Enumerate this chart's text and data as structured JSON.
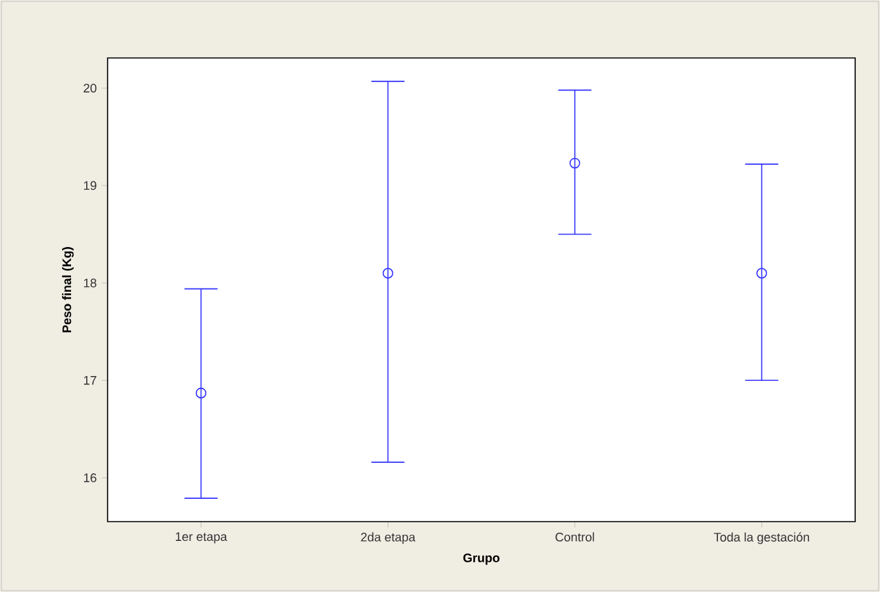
{
  "chart_data": {
    "type": "scatter",
    "xlabel": "Grupo",
    "ylabel": "Peso final (Kg)",
    "categories": [
      "1er etapa",
      "2da etapa",
      "Control",
      "Toda la gestación"
    ],
    "values": [
      16.87,
      18.1,
      19.23,
      18.1
    ],
    "errors": [
      [
        15.79,
        17.94
      ],
      [
        16.16,
        20.07
      ],
      [
        18.5,
        19.98
      ],
      [
        17.0,
        19.22
      ]
    ],
    "color": "#3333ff",
    "marker": "circle",
    "ylim": [
      15.55,
      20.31
    ],
    "yticks": [
      16,
      17,
      18,
      19,
      20
    ]
  }
}
